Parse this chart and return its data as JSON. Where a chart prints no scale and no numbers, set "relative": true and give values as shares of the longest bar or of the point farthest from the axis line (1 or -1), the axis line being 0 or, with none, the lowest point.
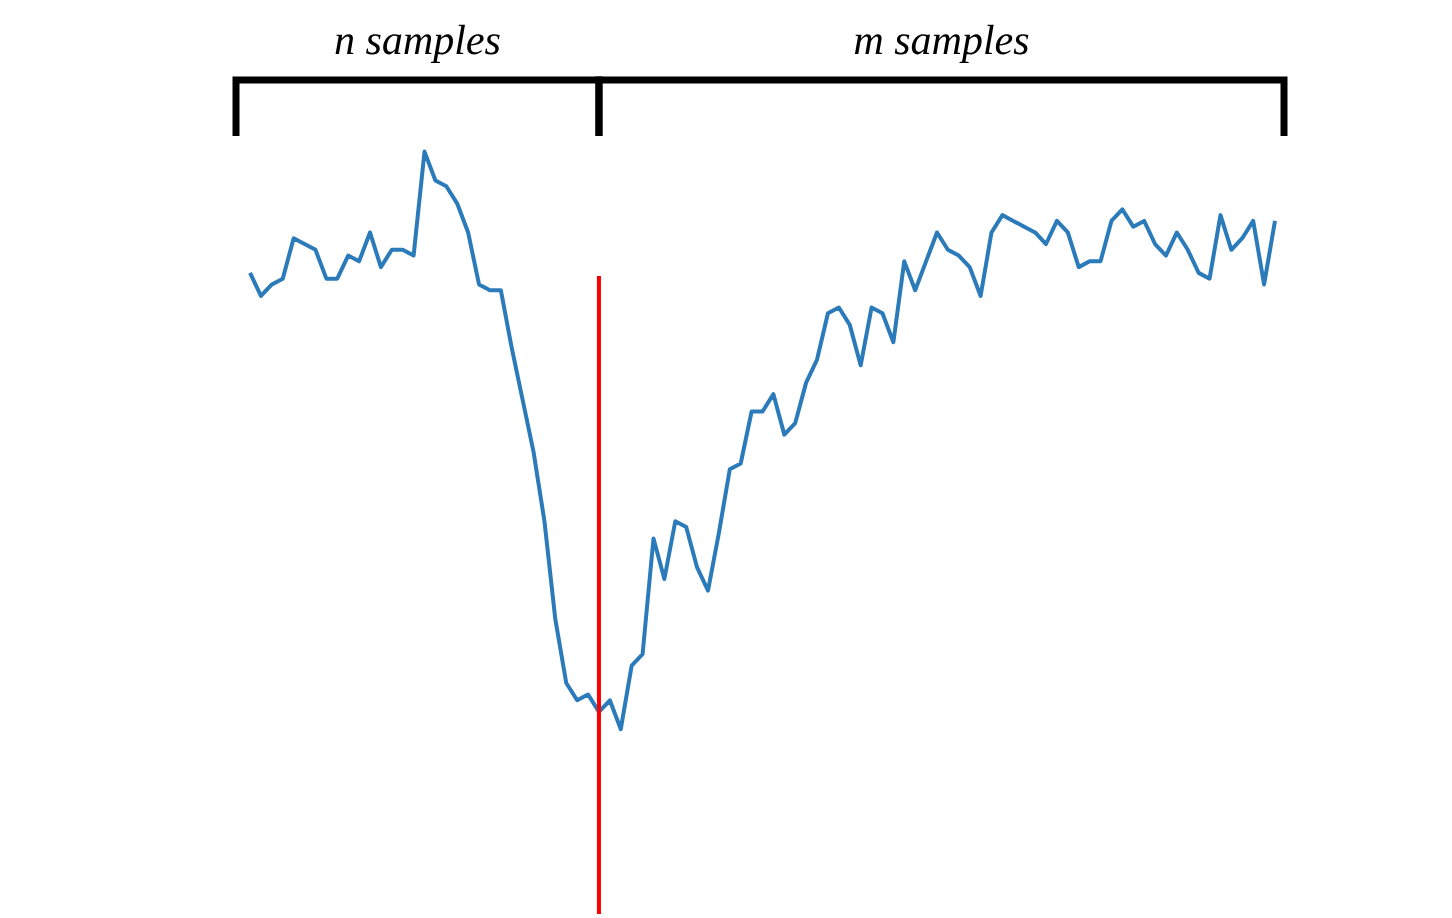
{
  "chart_data": {
    "type": "line",
    "relative": true,
    "categories": [
      null,
      null,
      null,
      null,
      null,
      null,
      null,
      null,
      null,
      null,
      null,
      null,
      null,
      null,
      null,
      null,
      null,
      null,
      null,
      null,
      null,
      null,
      null,
      null,
      null,
      null,
      null,
      null,
      null,
      null,
      null,
      null,
      null,
      null,
      null,
      null,
      null,
      null,
      null,
      null,
      null,
      null,
      null,
      null,
      null,
      null,
      null,
      null,
      null,
      null,
      null,
      null,
      null,
      null,
      null,
      null,
      null,
      null,
      null,
      null,
      null,
      null,
      null,
      null,
      null,
      null,
      null,
      null,
      null,
      null,
      null,
      null,
      null,
      null,
      null,
      null,
      null,
      null,
      null,
      null,
      null,
      null,
      null,
      null,
      null,
      null,
      null,
      null,
      null,
      null,
      null,
      null,
      null,
      null,
      null
    ],
    "series": [
      {
        "color": "#2b7bba",
        "values": [
          0.79,
          0.75,
          0.77,
          0.78,
          0.85,
          0.84,
          0.83,
          0.78,
          0.78,
          0.82,
          0.81,
          0.86,
          0.8,
          0.83,
          0.83,
          0.82,
          1,
          0.95,
          0.94,
          0.91,
          0.86,
          0.77,
          0.76,
          0.76,
          0.66,
          0.57,
          0.48,
          0.36,
          0.19,
          0.08,
          0.05,
          0.06,
          0.03,
          0.05,
          0,
          0.11,
          0.13,
          0.33,
          0.26,
          0.36,
          0.35,
          0.28,
          0.24,
          0.34,
          0.45,
          0.46,
          0.55,
          0.55,
          0.58,
          0.51,
          0.53,
          0.6,
          0.64,
          0.72,
          0.73,
          0.7,
          0.63,
          0.73,
          0.72,
          0.67,
          0.81,
          0.76,
          0.81,
          0.86,
          0.83,
          0.82,
          0.8,
          0.75,
          0.86,
          0.89,
          0.88,
          0.87,
          0.86,
          0.84,
          0.88,
          0.86,
          0.8,
          0.81,
          0.81,
          0.88,
          0.9,
          0.87,
          0.88,
          0.84,
          0.82,
          0.86,
          0.83,
          0.79,
          0.78,
          0.89,
          0.83,
          0.85,
          0.88,
          0.77,
          0.88
        ]
      }
    ],
    "annotations": [
      "n samples",
      "m samples"
    ],
    "marker": "none",
    "line_style": "solid"
  }
}
